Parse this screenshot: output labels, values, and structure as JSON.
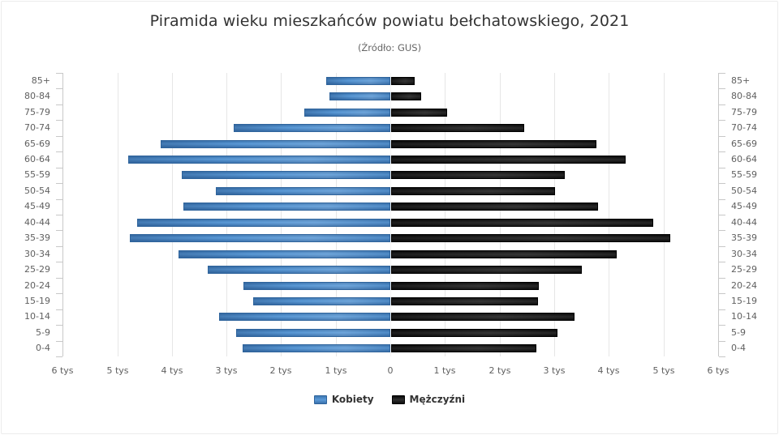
{
  "header": {
    "title": "Piramida wieku mieszkańców powiatu bełchatowskiego, 2021",
    "subtitle": "(Źródło: GUS)"
  },
  "legend": {
    "women_label": "Kobiety",
    "men_label": "Mężczyźni"
  },
  "colors": {
    "women": "#4a88c6",
    "men": "#1a1a1a",
    "grid": "#e6e6e6",
    "text": "#333333"
  },
  "x_axis": {
    "ticks": [
      "6 tys",
      "5 tys",
      "4 tys",
      "3 tys",
      "2 tys",
      "1 tys",
      "0",
      "1 tys",
      "2 tys",
      "3 tys",
      "4 tys",
      "5 tys",
      "6 tys"
    ]
  },
  "chart_data": {
    "type": "bar",
    "orientation": "horizontal",
    "subtype": "population-pyramid",
    "title": "Piramida wieku mieszkańców powiatu bełchatowskiego, 2021",
    "subtitle": "(Źródło: GUS)",
    "xlabel": "",
    "ylabel": "",
    "xlim": [
      -6000,
      6000
    ],
    "x_tick_labels": [
      "6 tys",
      "5 tys",
      "4 tys",
      "3 tys",
      "2 tys",
      "1 tys",
      "0",
      "1 tys",
      "2 tys",
      "3 tys",
      "4 tys",
      "5 tys",
      "6 tys"
    ],
    "grid": true,
    "legend_position": "bottom",
    "categories": [
      "85+",
      "80-84",
      "75-79",
      "70-74",
      "65-69",
      "60-64",
      "55-59",
      "50-54",
      "45-49",
      "40-44",
      "35-39",
      "30-34",
      "25-29",
      "20-24",
      "15-19",
      "10-14",
      "5-9",
      "0-4"
    ],
    "series": [
      {
        "name": "Kobiety",
        "side": "left",
        "values": [
          1170,
          1110,
          1570,
          2870,
          4200,
          4800,
          3820,
          3190,
          3790,
          4640,
          4770,
          3880,
          3340,
          2690,
          2510,
          3130,
          2820,
          2700
        ]
      },
      {
        "name": "Mężczyźni",
        "side": "right",
        "values": [
          430,
          550,
          1030,
          2440,
          3760,
          4290,
          3180,
          3000,
          3790,
          4800,
          5110,
          4130,
          3490,
          2700,
          2690,
          3360,
          3050,
          2660
        ]
      }
    ]
  }
}
